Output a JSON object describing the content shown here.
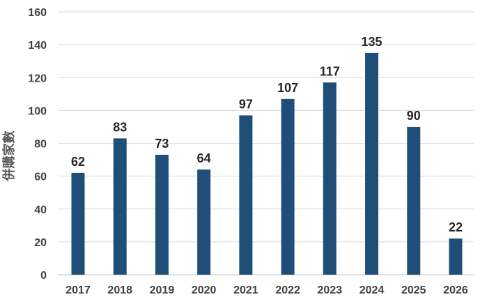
{
  "chart_data": {
    "type": "bar",
    "title": "",
    "xlabel": "",
    "ylabel": "併購家數",
    "categories": [
      "2017",
      "2018",
      "2019",
      "2020",
      "2021",
      "2022",
      "2023",
      "2024",
      "2025",
      "2026"
    ],
    "series": [
      {
        "values": [
          62,
          83,
          73,
          64,
          97,
          107,
          117,
          135,
          90,
          22
        ],
        "color": "#1f4e79"
      }
    ],
    "ylim": [
      0,
      160
    ],
    "yticks": [
      0,
      20,
      40,
      60,
      80,
      100,
      120,
      140,
      160
    ],
    "grid": true,
    "legend": "none",
    "data_labels": true
  }
}
